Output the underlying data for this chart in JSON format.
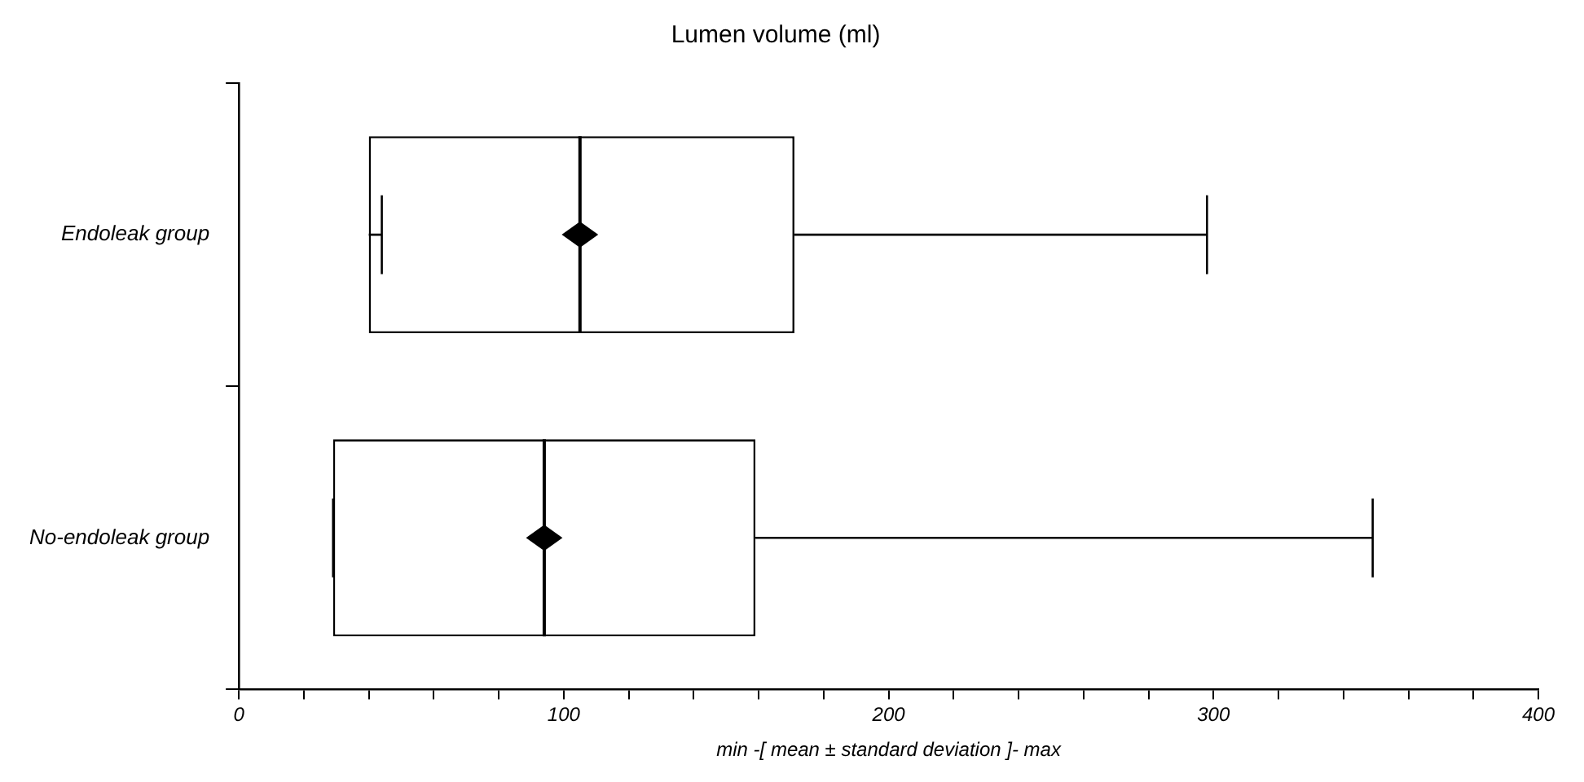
{
  "chart_data": {
    "type": "box",
    "title": "Lumen volume (ml)",
    "xlabel": "min -[ mean ± standard deviation ]- max",
    "orientation": "horizontal",
    "categories": [
      "Endoleak group",
      "No-endoleak group"
    ],
    "boxes": [
      {
        "low": 44,
        "q1": 40,
        "median": 105,
        "q3": 171,
        "high": 298,
        "mean": 105
      },
      {
        "low": 29,
        "q1": 29,
        "median": 94,
        "q3": 159,
        "high": 349,
        "mean": 94
      }
    ],
    "marker": "diamond",
    "grid": false,
    "legend": false,
    "xlim": [
      0,
      400
    ],
    "xticks": [
      0,
      {
        "value": 20,
        "label": null
      },
      {
        "value": 40,
        "label": null
      },
      {
        "value": 60,
        "label": null
      },
      {
        "value": 80,
        "label": null
      },
      100,
      {
        "value": 120,
        "label": null
      },
      {
        "value": 140,
        "label": null
      },
      {
        "value": 160,
        "label": null
      },
      {
        "value": 180,
        "label": null
      },
      200,
      {
        "value": 220,
        "label": null
      },
      {
        "value": 240,
        "label": null
      },
      {
        "value": 260,
        "label": null
      },
      {
        "value": 280,
        "label": null
      },
      300,
      {
        "value": 320,
        "label": null
      },
      {
        "value": 340,
        "label": null
      },
      {
        "value": 360,
        "label": null
      },
      {
        "value": 380,
        "label": null
      },
      400
    ]
  }
}
